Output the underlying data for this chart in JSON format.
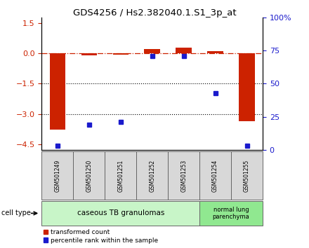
{
  "title": "GDS4256 / Hs2.382040.1.S1_3p_at",
  "samples": [
    "GSM501249",
    "GSM501250",
    "GSM501251",
    "GSM501252",
    "GSM501253",
    "GSM501254",
    "GSM501255"
  ],
  "red_values": [
    -3.8,
    -0.1,
    -0.05,
    0.22,
    0.28,
    0.12,
    -3.35
  ],
  "blue_values": [
    3.0,
    19.0,
    21.0,
    71.0,
    71.0,
    43.0,
    3.0
  ],
  "ylim_left": [
    -4.8,
    1.8
  ],
  "ylim_right": [
    0,
    100
  ],
  "yticks_left": [
    1.5,
    0,
    -1.5,
    -3.0,
    -4.5
  ],
  "yticks_right": [
    100,
    75,
    50,
    25,
    0
  ],
  "hline_values": [
    -1.5,
    -3.0
  ],
  "dashed_hline": 0,
  "group1_count": 5,
  "group2_count": 2,
  "group1_label": "caseous TB granulomas",
  "group2_label": "normal lung\nparenchyma",
  "group1_color": "#c8f5c8",
  "group2_color": "#90e890",
  "sample_box_color": "#d8d8d8",
  "cell_type_label": "cell type",
  "legend1": "transformed count",
  "legend2": "percentile rank within the sample",
  "red_color": "#cc2200",
  "blue_color": "#1a1acc",
  "bar_width": 0.5
}
